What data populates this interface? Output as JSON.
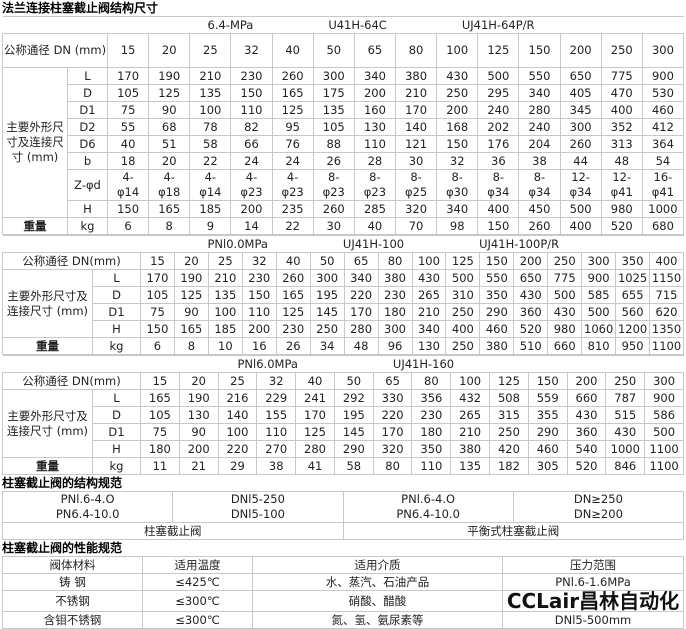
{
  "t1": {
    "title": "法兰连接柱塞截止阀结构尺寸",
    "caption": [
      "6.4-MPa",
      "U41H-64C",
      "UJ41H-64P/R"
    ],
    "dn_label": "公称通径 DN (mm)",
    "dn": [
      "15",
      "20",
      "25",
      "32",
      "40",
      "50",
      "65",
      "80",
      "100",
      "125",
      "150",
      "200",
      "250",
      "300"
    ],
    "group_label": "主要外形尺寸及连接尺寸 (mm)",
    "rows": [
      {
        "k": "L",
        "v": [
          "170",
          "190",
          "210",
          "230",
          "260",
          "300",
          "340",
          "380",
          "430",
          "500",
          "550",
          "650",
          "775",
          "900"
        ]
      },
      {
        "k": "D",
        "v": [
          "105",
          "125",
          "135",
          "150",
          "165",
          "175",
          "200",
          "210",
          "250",
          "295",
          "340",
          "405",
          "470",
          "530"
        ]
      },
      {
        "k": "D1",
        "v": [
          "75",
          "90",
          "100",
          "110",
          "125",
          "135",
          "160",
          "170",
          "200",
          "240",
          "280",
          "345",
          "400",
          "460"
        ]
      },
      {
        "k": "D2",
        "v": [
          "55",
          "68",
          "78",
          "82",
          "95",
          "105",
          "130",
          "140",
          "168",
          "202",
          "240",
          "300",
          "352",
          "412"
        ]
      },
      {
        "k": "D6",
        "v": [
          "40",
          "51",
          "58",
          "66",
          "76",
          "88",
          "110",
          "121",
          "150",
          "176",
          "204",
          "260",
          "313",
          "364"
        ]
      },
      {
        "k": "b",
        "v": [
          "18",
          "20",
          "22",
          "24",
          "24",
          "26",
          "28",
          "30",
          "32",
          "36",
          "38",
          "44",
          "48",
          "54"
        ]
      },
      {
        "k": "Z-φd",
        "v": [
          "4-φ14",
          "4-φ18",
          "4-φ14",
          "4-φ23",
          "4-φ23",
          "8-φ23",
          "8-φ23",
          "8-φ25",
          "8-φ30",
          "8-φ34",
          "8-φ34",
          "12-φ34",
          "12-φ41",
          "16-φ41"
        ]
      },
      {
        "k": "H",
        "v": [
          "150",
          "165",
          "185",
          "200",
          "235",
          "260",
          "285",
          "320",
          "340",
          "400",
          "450",
          "500",
          "980",
          "1000"
        ]
      }
    ],
    "weight_label": "重量",
    "weight": {
      "k": "kg",
      "v": [
        "6",
        "8",
        "9",
        "14",
        "22",
        "30",
        "40",
        "70",
        "98",
        "150",
        "260",
        "400",
        "520",
        "680"
      ]
    }
  },
  "t2": {
    "caption": [
      "PNl0.0MPa",
      "UJ41H-100",
      "UJ41H-100P/R"
    ],
    "dn_label": "公称通径 DN(mm)",
    "dn": [
      "15",
      "20",
      "25",
      "32",
      "40",
      "50",
      "65",
      "80",
      "100",
      "125",
      "150",
      "200",
      "250",
      "300",
      "350",
      "400"
    ],
    "group_label": "主要外形尺寸及连接尺寸 (mm)",
    "rows": [
      {
        "k": "L",
        "v": [
          "170",
          "190",
          "210",
          "230",
          "260",
          "300",
          "340",
          "380",
          "430",
          "500",
          "550",
          "650",
          "775",
          "900",
          "1025",
          "1150"
        ]
      },
      {
        "k": "D",
        "v": [
          "105",
          "125",
          "135",
          "150",
          "165",
          "195",
          "220",
          "230",
          "265",
          "310",
          "350",
          "430",
          "500",
          "585",
          "655",
          "715"
        ]
      },
      {
        "k": "D1",
        "v": [
          "75",
          "90",
          "100",
          "110",
          "125",
          "145",
          "170",
          "180",
          "210",
          "250",
          "290",
          "360",
          "430",
          "500",
          "560",
          "620"
        ]
      },
      {
        "k": "H",
        "v": [
          "150",
          "165",
          "185",
          "200",
          "230",
          "250",
          "280",
          "300",
          "340",
          "400",
          "460",
          "520",
          "980",
          "1060",
          "1200",
          "1350"
        ]
      }
    ],
    "weight_label": "重量",
    "weight": {
      "k": "kg",
      "v": [
        "6",
        "8",
        "10",
        "16",
        "26",
        "34",
        "48",
        "96",
        "130",
        "250",
        "380",
        "510",
        "660",
        "810",
        "950",
        "1100"
      ]
    }
  },
  "t3": {
    "caption": [
      "PNl6.0MPa",
      "UJ41H-160"
    ],
    "dn_label": "公称通径 DN(mm)",
    "dn": [
      "15",
      "20",
      "25",
      "32",
      "40",
      "50",
      "65",
      "80",
      "100",
      "125",
      "150",
      "200",
      "250",
      "300"
    ],
    "group_label": "主要外形尺寸及连接尺寸 (mm)",
    "rows": [
      {
        "k": "L",
        "v": [
          "165",
          "190",
          "216",
          "229",
          "241",
          "292",
          "330",
          "356",
          "432",
          "508",
          "559",
          "660",
          "787",
          "900"
        ]
      },
      {
        "k": "D",
        "v": [
          "105",
          "130",
          "140",
          "155",
          "170",
          "195",
          "220",
          "230",
          "265",
          "315",
          "355",
          "430",
          "515",
          "586"
        ]
      },
      {
        "k": "D1",
        "v": [
          "75",
          "90",
          "100",
          "110",
          "125",
          "145",
          "170",
          "180",
          "210",
          "250",
          "290",
          "360",
          "430",
          "500"
        ]
      },
      {
        "k": "H",
        "v": [
          "180",
          "200",
          "220",
          "270",
          "280",
          "290",
          "320",
          "350",
          "380",
          "420",
          "460",
          "540",
          "1000",
          "1100"
        ]
      }
    ],
    "weight_label": "重量",
    "weight": {
      "k": "kg",
      "v": [
        "11",
        "21",
        "29",
        "38",
        "41",
        "58",
        "80",
        "110",
        "135",
        "182",
        "305",
        "520",
        "846",
        "1100"
      ]
    }
  },
  "structure": {
    "title": "柱塞截止阀的结构规范",
    "cells": [
      [
        "PNl.6-4.O\nPN6.4-10.0",
        "DNl5-250\nDNl5-100",
        "PNl.6-4.O\nPN6.4-10.0",
        "DN≥250\nDN≥200"
      ]
    ],
    "types": [
      "柱塞截止阀",
      "平衡式柱塞截止阀"
    ]
  },
  "performance": {
    "title": "柱塞截止阀的性能规范",
    "headers": [
      "阀体材料",
      "适用温度",
      "适用介质",
      "压力范围"
    ],
    "rows": [
      [
        "铸 钢",
        "≤425℃",
        "水、蒸汽、石油产品",
        "PNl.6-1.6MPa"
      ],
      [
        "不锈钢",
        "≤300℃",
        "硝酸、醋酸",
        ""
      ],
      [
        "含钼不锈钢",
        "≤300℃",
        "氮、氢、氨尿素等",
        "DNl5-500mm"
      ]
    ],
    "watermark": "CCLair昌林自动化"
  }
}
